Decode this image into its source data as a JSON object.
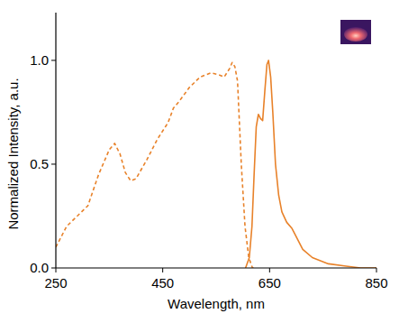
{
  "chart_data": {
    "type": "line",
    "x_label": "Wavelength, nm",
    "y_label": "Normalized Intensity, a.u.",
    "xlim": [
      250,
      850
    ],
    "ylim": [
      0,
      1.23
    ],
    "xticks": [
      250,
      450,
      650,
      850
    ],
    "yticks": [
      {
        "value": 0,
        "label": "0.0"
      },
      {
        "value": 0.5,
        "label": "0.5"
      },
      {
        "value": 1,
        "label": "1.0"
      }
    ],
    "grid": false,
    "series": [
      {
        "color": "#e8822a",
        "line_style": "dashed",
        "x": [
          250,
          270,
          290,
          310,
          330,
          350,
          360,
          370,
          380,
          390,
          400,
          420,
          440,
          460,
          470,
          480,
          500,
          520,
          540,
          555,
          565,
          575,
          580,
          585,
          590,
          597,
          604,
          611,
          618,
          625
        ],
        "values": [
          0.1,
          0.2,
          0.25,
          0.3,
          0.45,
          0.57,
          0.6,
          0.55,
          0.46,
          0.42,
          0.43,
          0.52,
          0.62,
          0.7,
          0.77,
          0.8,
          0.87,
          0.92,
          0.94,
          0.93,
          0.92,
          0.96,
          0.99,
          0.97,
          0.9,
          0.5,
          0.2,
          0.05,
          0.0,
          0.0
        ]
      },
      {
        "color": "#e8822a",
        "line_style": "solid",
        "x": [
          605,
          612,
          617,
          621,
          625,
          629,
          633,
          637,
          641,
          645,
          648,
          652,
          656,
          661,
          667,
          673,
          682,
          692,
          702,
          712,
          730,
          760,
          790,
          820,
          850
        ],
        "values": [
          0.0,
          0.05,
          0.2,
          0.45,
          0.68,
          0.74,
          0.72,
          0.71,
          0.85,
          0.98,
          1.0,
          0.92,
          0.75,
          0.5,
          0.35,
          0.27,
          0.22,
          0.19,
          0.14,
          0.09,
          0.05,
          0.02,
          0.01,
          0.0,
          0.0
        ]
      }
    ]
  }
}
